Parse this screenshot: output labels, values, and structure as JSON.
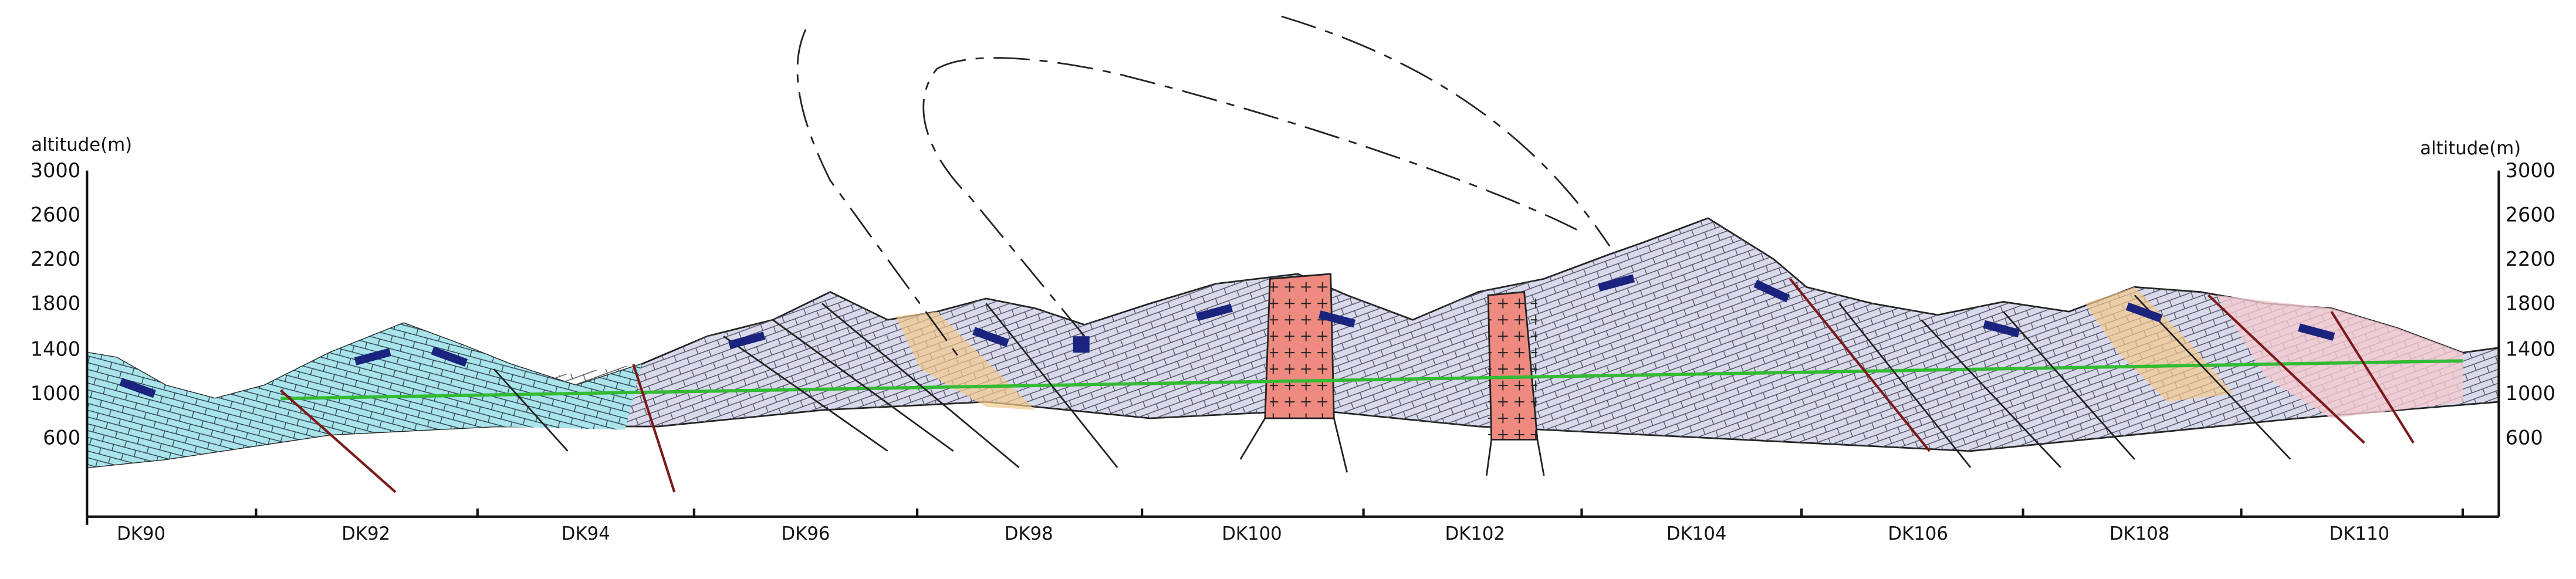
{
  "left_axis": {
    "label": "altitude(m)",
    "ticks": [
      3000,
      2600,
      2200,
      1800,
      1400,
      1000,
      600
    ]
  },
  "right_axis": {
    "label": "altitude(m)",
    "ticks": [
      3000,
      2600,
      2200,
      1800,
      1400,
      1000,
      600
    ]
  },
  "stations": [
    "DK90",
    "DK92",
    "DK94",
    "DK96",
    "DK98",
    "DK100",
    "DK102",
    "DK104",
    "DK106",
    "DK108",
    "DK110"
  ]
}
